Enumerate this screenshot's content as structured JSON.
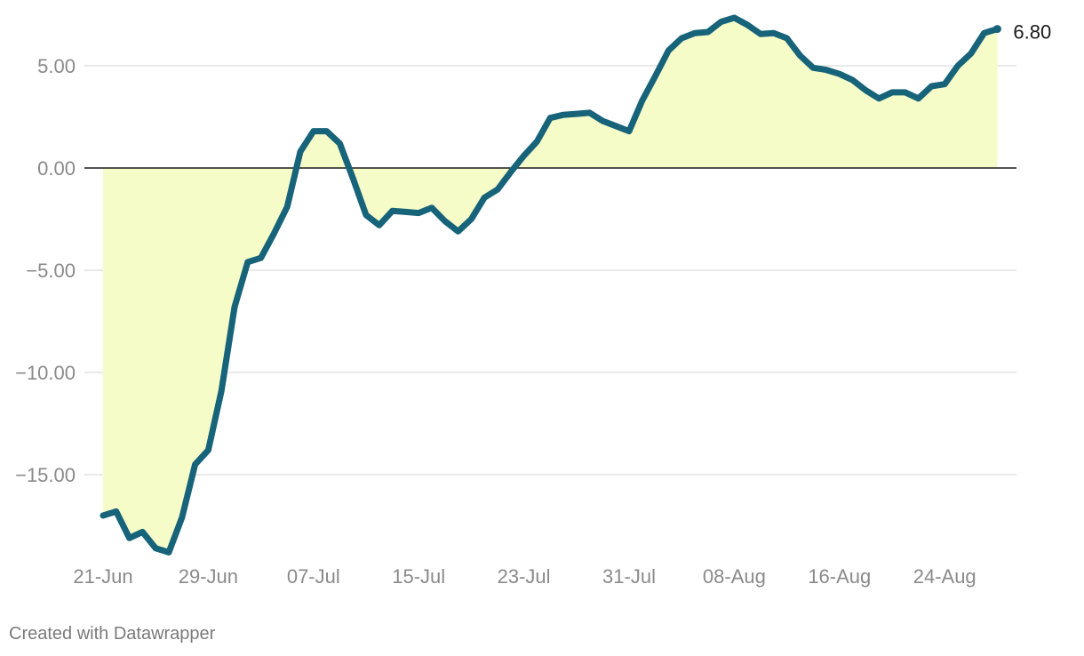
{
  "chart_data": {
    "type": "area",
    "title": "",
    "xlabel": "",
    "ylabel": "",
    "ylim": [
      -19,
      7.5
    ],
    "y_ticks": [
      5,
      0,
      -5,
      -10,
      -15
    ],
    "y_tick_labels": [
      "5.00",
      "0.00",
      "−5.00",
      "−10.00",
      "−15.00"
    ],
    "x_ticks": [
      "21-Jun",
      "29-Jun",
      "07-Jul",
      "15-Jul",
      "23-Jul",
      "31-Jul",
      "08-Aug",
      "16-Aug",
      "24-Aug"
    ],
    "x_tick_day_index": [
      0,
      8,
      16,
      24,
      32,
      40,
      48,
      56,
      64
    ],
    "grid": true,
    "zero_line": true,
    "series": [
      {
        "start_date": "2021-06-21",
        "values": [
          -17.0,
          -16.8,
          -18.1,
          -17.8,
          -18.6,
          -18.8,
          -17.1,
          -14.5,
          -13.8,
          -10.9,
          -6.8,
          -4.6,
          -4.4,
          -3.2,
          -1.9,
          0.8,
          1.8,
          1.8,
          1.2,
          -0.5,
          -2.3,
          -2.8,
          -2.1,
          -2.15,
          -2.2,
          -1.95,
          -2.6,
          -3.1,
          -2.5,
          -1.45,
          -1.05,
          -0.2,
          0.6,
          1.3,
          2.45,
          2.6,
          2.65,
          2.7,
          2.3,
          2.05,
          1.8,
          3.3,
          4.5,
          5.75,
          6.35,
          6.6,
          6.65,
          7.15,
          7.35,
          7.0,
          6.55,
          6.6,
          6.35,
          5.5,
          4.9,
          4.8,
          4.6,
          4.3,
          3.8,
          3.4,
          3.7,
          3.7,
          3.4,
          4.0,
          4.1,
          5.0,
          5.6,
          6.6,
          6.8
        ]
      }
    ],
    "end_label": "6.80",
    "colors": {
      "line": "#16637a",
      "fill": "#f6fcc8",
      "grid": "#e2e2e2",
      "zero": "#1a1a1a",
      "tick_text": "#8a8a8a"
    }
  },
  "credit": "Created with Datawrapper"
}
